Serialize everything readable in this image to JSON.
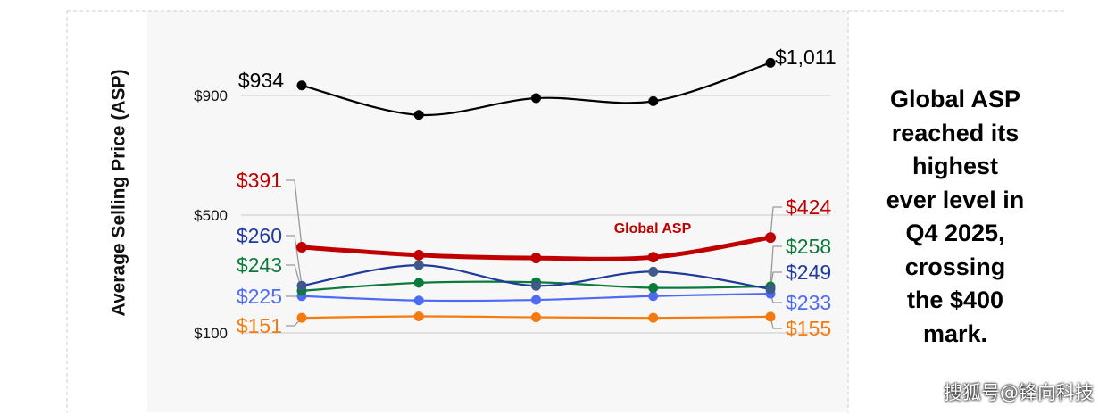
{
  "chart_data": {
    "type": "line",
    "ylabel": "Average Selling Price (ASP)",
    "yticks": [
      {
        "label": "$900",
        "value": 900
      },
      {
        "label": "$500",
        "value": 500
      },
      {
        "label": "$100",
        "value": 100
      }
    ],
    "points_per_series": 5,
    "series": [
      {
        "key": "s1",
        "color": "#000000",
        "width": 2.2,
        "values": [
          934,
          835,
          891,
          881,
          1011
        ],
        "start_label": "$934",
        "end_label": "$1,011"
      },
      {
        "key": "s2",
        "name": "Global ASP",
        "color": "#c00000",
        "width": 5,
        "values": [
          391,
          364,
          354,
          357,
          424
        ],
        "start_label": "$391",
        "end_label": "$424"
      },
      {
        "key": "s3",
        "color": "#1f3a9a",
        "width": 2.2,
        "values": [
          260,
          330,
          260,
          308,
          249
        ],
        "start_label": "$260",
        "end_label": "$249"
      },
      {
        "key": "s4",
        "color": "#0b7a3b",
        "width": 2.2,
        "values": [
          243,
          270,
          272,
          253,
          258
        ],
        "start_label": "$243",
        "end_label": "$258"
      },
      {
        "key": "s5",
        "color": "#4d6bf2",
        "width": 2.2,
        "values": [
          225,
          210,
          212,
          225,
          233
        ],
        "start_label": "$225",
        "end_label": "$233"
      },
      {
        "key": "s6",
        "color": "#f47a10",
        "width": 2.2,
        "values": [
          151,
          156,
          153,
          151,
          155
        ],
        "start_label": "$151",
        "end_label": "$155"
      }
    ]
  },
  "annotation": {
    "lines": [
      "Global ASP",
      "reached its",
      "highest",
      "ever level in",
      "Q4 2025,",
      "crossing",
      "the $400",
      "mark."
    ]
  },
  "watermark": "搜狐号@锋向科技"
}
